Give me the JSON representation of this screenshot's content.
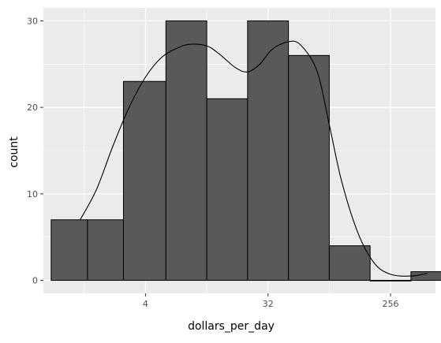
{
  "chart_data": {
    "type": "histogram",
    "x_scale": "log2",
    "xlabel": "dollars_per_day",
    "ylabel": "count",
    "x_ticks": [
      {
        "value": 4,
        "label": "4"
      },
      {
        "value": 32,
        "label": "32"
      },
      {
        "value": 256,
        "label": "256"
      }
    ],
    "y_ticks": [
      {
        "value": 0,
        "label": "0"
      },
      {
        "value": 10,
        "label": "10"
      },
      {
        "value": 20,
        "label": "20"
      },
      {
        "value": 30,
        "label": "30"
      }
    ],
    "xlim_log2": [
      -0.5,
      9.1
    ],
    "ylim": [
      -1.5,
      31.5
    ],
    "bins": [
      {
        "x0_log2": -0.31,
        "x1_log2": 0.58,
        "count": 7
      },
      {
        "x0_log2": 0.58,
        "x1_log2": 1.46,
        "count": 7
      },
      {
        "x0_log2": 1.46,
        "x1_log2": 2.5,
        "count": 23
      },
      {
        "x0_log2": 2.5,
        "x1_log2": 3.5,
        "count": 30
      },
      {
        "x0_log2": 3.5,
        "x1_log2": 4.5,
        "count": 21
      },
      {
        "x0_log2": 4.5,
        "x1_log2": 5.5,
        "count": 30
      },
      {
        "x0_log2": 5.5,
        "x1_log2": 6.5,
        "count": 26
      },
      {
        "x0_log2": 6.5,
        "x1_log2": 7.5,
        "count": 4
      },
      {
        "x0_log2": 7.5,
        "x1_log2": 8.5,
        "count": 0
      },
      {
        "x0_log2": 8.5,
        "x1_log2": 8.8,
        "count": 0.7
      },
      {
        "x0_log2": 8.5,
        "x1_log2": 9.5,
        "count": 1
      }
    ],
    "density_curve": [
      [
        0.4,
        7
      ],
      [
        0.8,
        10.5
      ],
      [
        1.2,
        15.5
      ],
      [
        1.6,
        20
      ],
      [
        2.0,
        23.5
      ],
      [
        2.4,
        25.8
      ],
      [
        2.8,
        26.9
      ],
      [
        3.1,
        27.3
      ],
      [
        3.5,
        27.1
      ],
      [
        3.8,
        26.2
      ],
      [
        4.2,
        24.6
      ],
      [
        4.5,
        24.1
      ],
      [
        4.8,
        25.0
      ],
      [
        5.1,
        26.7
      ],
      [
        5.5,
        27.6
      ],
      [
        5.8,
        27.2
      ],
      [
        6.2,
        24.2
      ],
      [
        6.5,
        18.0
      ],
      [
        6.8,
        11.5
      ],
      [
        7.2,
        5.5
      ],
      [
        7.6,
        2.0
      ],
      [
        8.0,
        0.7
      ],
      [
        8.5,
        0.5
      ],
      [
        8.9,
        0.8
      ]
    ],
    "grid": true,
    "bar_fill": "#595959",
    "bar_stroke": "#000000",
    "panel_background": "#ebebeb",
    "gridline_color": "#ffffff"
  }
}
